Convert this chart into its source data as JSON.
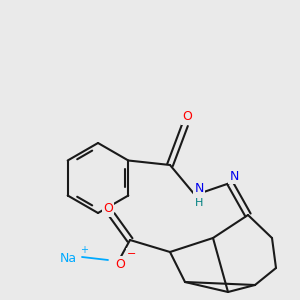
{
  "background_color": "#eaeaea",
  "bond_color": "#1a1a1a",
  "atom_colors": {
    "O": "#ff0000",
    "N": "#0000ee",
    "Na": "#00aaff",
    "H": "#008080",
    "C": "#1a1a1a"
  },
  "figsize": [
    3.0,
    3.0
  ],
  "dpi": 100,
  "xlim": [
    0,
    300
  ],
  "ylim": [
    0,
    300
  ]
}
